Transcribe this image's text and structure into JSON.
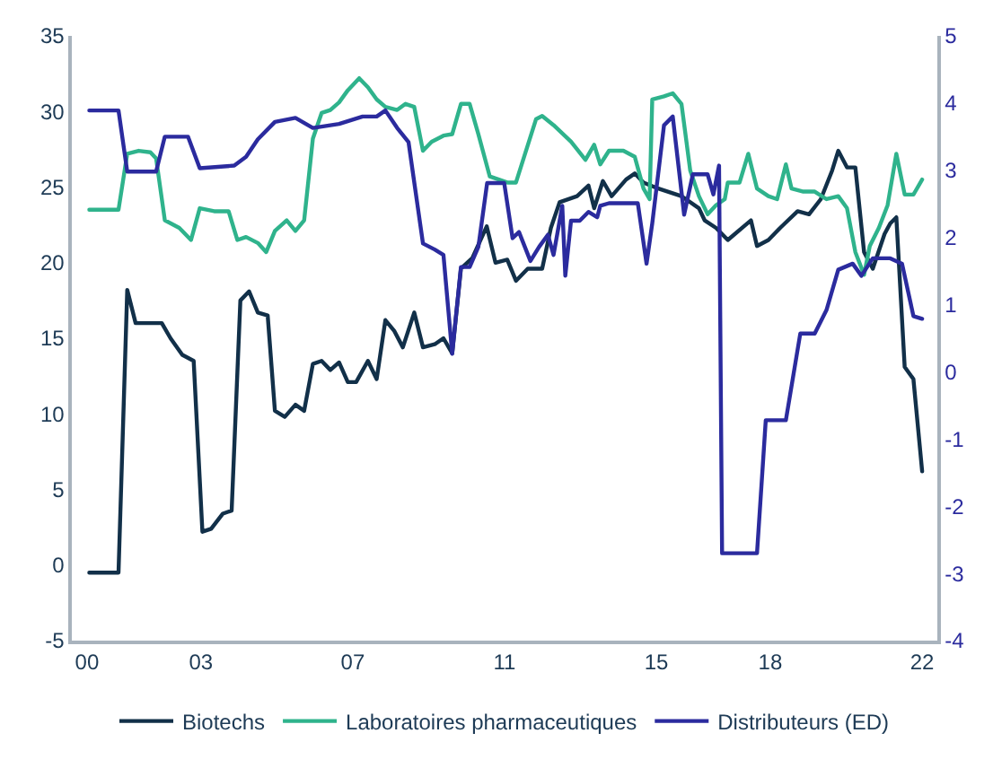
{
  "chart_data": {
    "type": "line",
    "xlim": [
      1999.6,
      2022.4
    ],
    "xticks": [
      {
        "value": 2000,
        "label": "00"
      },
      {
        "value": 2003,
        "label": "03"
      },
      {
        "value": 2007,
        "label": "07"
      },
      {
        "value": 2011,
        "label": "11"
      },
      {
        "value": 2015,
        "label": "15"
      },
      {
        "value": 2018,
        "label": "18"
      },
      {
        "value": 2022,
        "label": "22"
      }
    ],
    "ylim": [
      -5,
      35
    ],
    "yticks": [
      -5,
      0,
      5,
      10,
      15,
      20,
      25,
      30,
      35
    ],
    "y2lim": [
      -4,
      5
    ],
    "y2ticks": [
      -4,
      -3,
      -2,
      -1,
      0,
      1,
      2,
      3,
      4,
      5
    ],
    "legend": "bottom",
    "marker": "none",
    "line_style": "solid",
    "series": [
      {
        "name": "Biotechs",
        "color": "#123049",
        "x": [
          2000.06,
          2000.83,
          2001.06,
          2001.28,
          2001.97,
          2002.2,
          2002.51,
          2002.81,
          2003.04,
          2003.27,
          2003.58,
          2003.81,
          2004.04,
          2004.27,
          2004.5,
          2004.76,
          2004.95,
          2005.21,
          2005.49,
          2005.72,
          2005.95,
          2006.18,
          2006.41,
          2006.64,
          2006.87,
          2007.09,
          2007.4,
          2007.63,
          2007.86,
          2008.09,
          2008.32,
          2008.62,
          2008.85,
          2009.16,
          2009.39,
          2009.62,
          2009.85,
          2010.15,
          2010.53,
          2010.76,
          2011.07,
          2011.3,
          2011.61,
          2011.99,
          2012.22,
          2012.45,
          2012.91,
          2013.21,
          2013.36,
          2013.59,
          2013.82,
          2014.2,
          2014.43,
          2014.66,
          2015.05,
          2015.66,
          2016.12,
          2016.27,
          2016.57,
          2016.88,
          2017.49,
          2017.65,
          2017.95,
          2018.26,
          2018.72,
          2019.02,
          2019.33,
          2019.63,
          2019.79,
          2020.02,
          2020.24,
          2020.47,
          2020.7,
          2021.01,
          2021.16,
          2021.32,
          2021.54,
          2021.77,
          2022.0
        ],
        "values": [
          -0.5,
          -0.5,
          18.2,
          16,
          16,
          15,
          13.9,
          13.5,
          2.2,
          2.4,
          3.4,
          3.6,
          17.5,
          18.1,
          16.7,
          16.5,
          10.2,
          9.8,
          10.6,
          10.2,
          13.3,
          13.5,
          12.9,
          13.4,
          12.1,
          12.1,
          13.5,
          12.3,
          16.2,
          15.5,
          14.4,
          16.7,
          14.4,
          14.6,
          15,
          14,
          19.6,
          20.3,
          22.4,
          20.0,
          20.2,
          18.8,
          19.6,
          19.6,
          22.3,
          24.0,
          24.4,
          25.1,
          23.6,
          25.4,
          24.4,
          25.5,
          25.9,
          25.3,
          24.9,
          24.4,
          23.6,
          22.8,
          22.3,
          21.5,
          22.8,
          21.1,
          21.5,
          22.3,
          23.4,
          23.2,
          24.2,
          26.1,
          27.4,
          26.3,
          26.3,
          20.7,
          19.6,
          21.9,
          22.6,
          23.0,
          13.1,
          12.3,
          6.2
        ]
      },
      {
        "name": "Laboratoires pharmaceutiques",
        "color": "#2fb38c",
        "x": [
          2000.06,
          2000.83,
          2001.06,
          2001.36,
          2001.67,
          2001.82,
          2002.05,
          2002.43,
          2002.74,
          2002.97,
          2003.35,
          2003.73,
          2003.96,
          2004.19,
          2004.5,
          2004.72,
          2004.95,
          2005.26,
          2005.49,
          2005.72,
          2005.95,
          2006.18,
          2006.41,
          2006.64,
          2006.87,
          2007.17,
          2007.4,
          2007.63,
          2007.86,
          2008.17,
          2008.39,
          2008.62,
          2008.85,
          2009.08,
          2009.39,
          2009.62,
          2009.85,
          2010.08,
          2010.31,
          2010.61,
          2011.07,
          2011.3,
          2011.83,
          2011.99,
          2012.29,
          2012.75,
          2013.13,
          2013.36,
          2013.52,
          2013.75,
          2014.13,
          2014.43,
          2014.66,
          2014.82,
          2014.89,
          2015.2,
          2015.43,
          2015.66,
          2015.89,
          2016.12,
          2016.35,
          2016.57,
          2016.8,
          2016.88,
          2017.19,
          2017.42,
          2017.65,
          2017.95,
          2018.18,
          2018.41,
          2018.56,
          2018.87,
          2019.17,
          2019.48,
          2019.79,
          2020.02,
          2020.24,
          2020.47,
          2020.62,
          2020.86,
          2021.09,
          2021.32,
          2021.54,
          2021.77,
          2022.0
        ],
        "values": [
          23.5,
          23.5,
          27.2,
          27.4,
          27.3,
          26.9,
          22.8,
          22.3,
          21.5,
          23.6,
          23.4,
          23.4,
          21.5,
          21.7,
          21.3,
          20.7,
          22.1,
          22.8,
          22.1,
          22.8,
          28.2,
          29.9,
          30.1,
          30.6,
          31.4,
          32.2,
          31.6,
          30.8,
          30.3,
          30.1,
          30.5,
          30.3,
          27.4,
          28.0,
          28.4,
          28.5,
          30.5,
          30.5,
          28.5,
          25.7,
          25.3,
          25.3,
          29.5,
          29.7,
          29.1,
          28.0,
          26.8,
          27.8,
          26.5,
          27.4,
          27.4,
          27.0,
          24.9,
          24.2,
          30.8,
          31.0,
          31.2,
          30.5,
          26.1,
          24.4,
          23.2,
          23.8,
          24.2,
          25.3,
          25.3,
          27.2,
          24.9,
          24.4,
          24.2,
          26.5,
          24.9,
          24.7,
          24.7,
          24.2,
          24.4,
          23.6,
          20.7,
          19.2,
          21.1,
          22.3,
          23.8,
          27.2,
          24.5,
          24.5,
          25.5
        ]
      },
      {
        "name": "Distributeurs (ED)",
        "color": "#2b2b9e",
        "axis": "y2",
        "x": [
          2000.06,
          2000.83,
          2001.06,
          2001.82,
          2002.05,
          2002.66,
          2002.97,
          2003.88,
          2004.19,
          2004.5,
          2004.95,
          2005.49,
          2005.95,
          2006.64,
          2007.26,
          2007.63,
          2007.86,
          2008.17,
          2008.47,
          2008.85,
          2009.16,
          2009.39,
          2009.62,
          2009.85,
          2010.08,
          2010.31,
          2010.54,
          2010.99,
          2011.21,
          2011.38,
          2011.68,
          2011.91,
          2012.14,
          2012.29,
          2012.52,
          2012.6,
          2012.75,
          2012.98,
          2013.21,
          2013.44,
          2013.52,
          2013.75,
          2014.13,
          2014.51,
          2014.74,
          2014.89,
          2015.2,
          2015.43,
          2015.73,
          2015.96,
          2016.35,
          2016.5,
          2016.65,
          2016.73,
          2017.65,
          2017.88,
          2018.41,
          2018.79,
          2019.17,
          2019.48,
          2019.79,
          2020.17,
          2020.4,
          2020.7,
          2021.16,
          2021.47,
          2021.77,
          2022.0
        ],
        "values": [
          3.89,
          3.89,
          2.98,
          2.98,
          3.5,
          3.5,
          3.03,
          3.07,
          3.2,
          3.46,
          3.72,
          3.78,
          3.63,
          3.69,
          3.8,
          3.8,
          3.89,
          3.63,
          3.42,
          1.91,
          1.82,
          1.74,
          0.27,
          1.56,
          1.56,
          1.86,
          2.81,
          2.81,
          1.99,
          2.08,
          1.65,
          1.86,
          2.04,
          1.74,
          2.47,
          1.43,
          2.25,
          2.25,
          2.38,
          2.3,
          2.47,
          2.51,
          2.51,
          2.51,
          1.61,
          2.21,
          3.67,
          3.8,
          2.34,
          2.94,
          2.94,
          2.64,
          3.07,
          -2.7,
          -2.7,
          -0.72,
          -0.72,
          0.57,
          0.57,
          0.92,
          1.52,
          1.61,
          1.43,
          1.69,
          1.69,
          1.61,
          0.83,
          0.79
        ]
      }
    ]
  }
}
